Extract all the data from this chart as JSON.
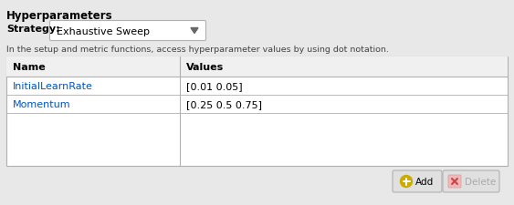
{
  "title": "Hyperparameters",
  "strategy_label": "Strategy:",
  "strategy_value": "Exhaustive Sweep",
  "info_text": "In the setup and metric functions, access hyperparameter values by using dot notation.",
  "table_headers": [
    "Name",
    "Values"
  ],
  "table_rows": [
    [
      "InitialLearnRate",
      "[0.01 0.05]"
    ],
    [
      "Momentum",
      "[0.25 0.5 0.75]"
    ]
  ],
  "bg_color": "#e8e8e8",
  "table_bg": "#ffffff",
  "header_bg": "#f0f0f0",
  "border_color": "#b0b0b0",
  "text_color": "#000000",
  "link_color": "#0055bb",
  "info_color": "#444444",
  "dropdown_bg": "#ffffff",
  "btn_bg": "#e0e0e0",
  "add_icon_color": "#ccaa00",
  "delete_icon_bg": "#f0b8b8",
  "delete_icon_color": "#cc4444",
  "title_fontsize": 8.5,
  "label_fontsize": 8.0,
  "info_fontsize": 6.8,
  "table_fontsize": 8.0,
  "btn_fontsize": 7.5
}
